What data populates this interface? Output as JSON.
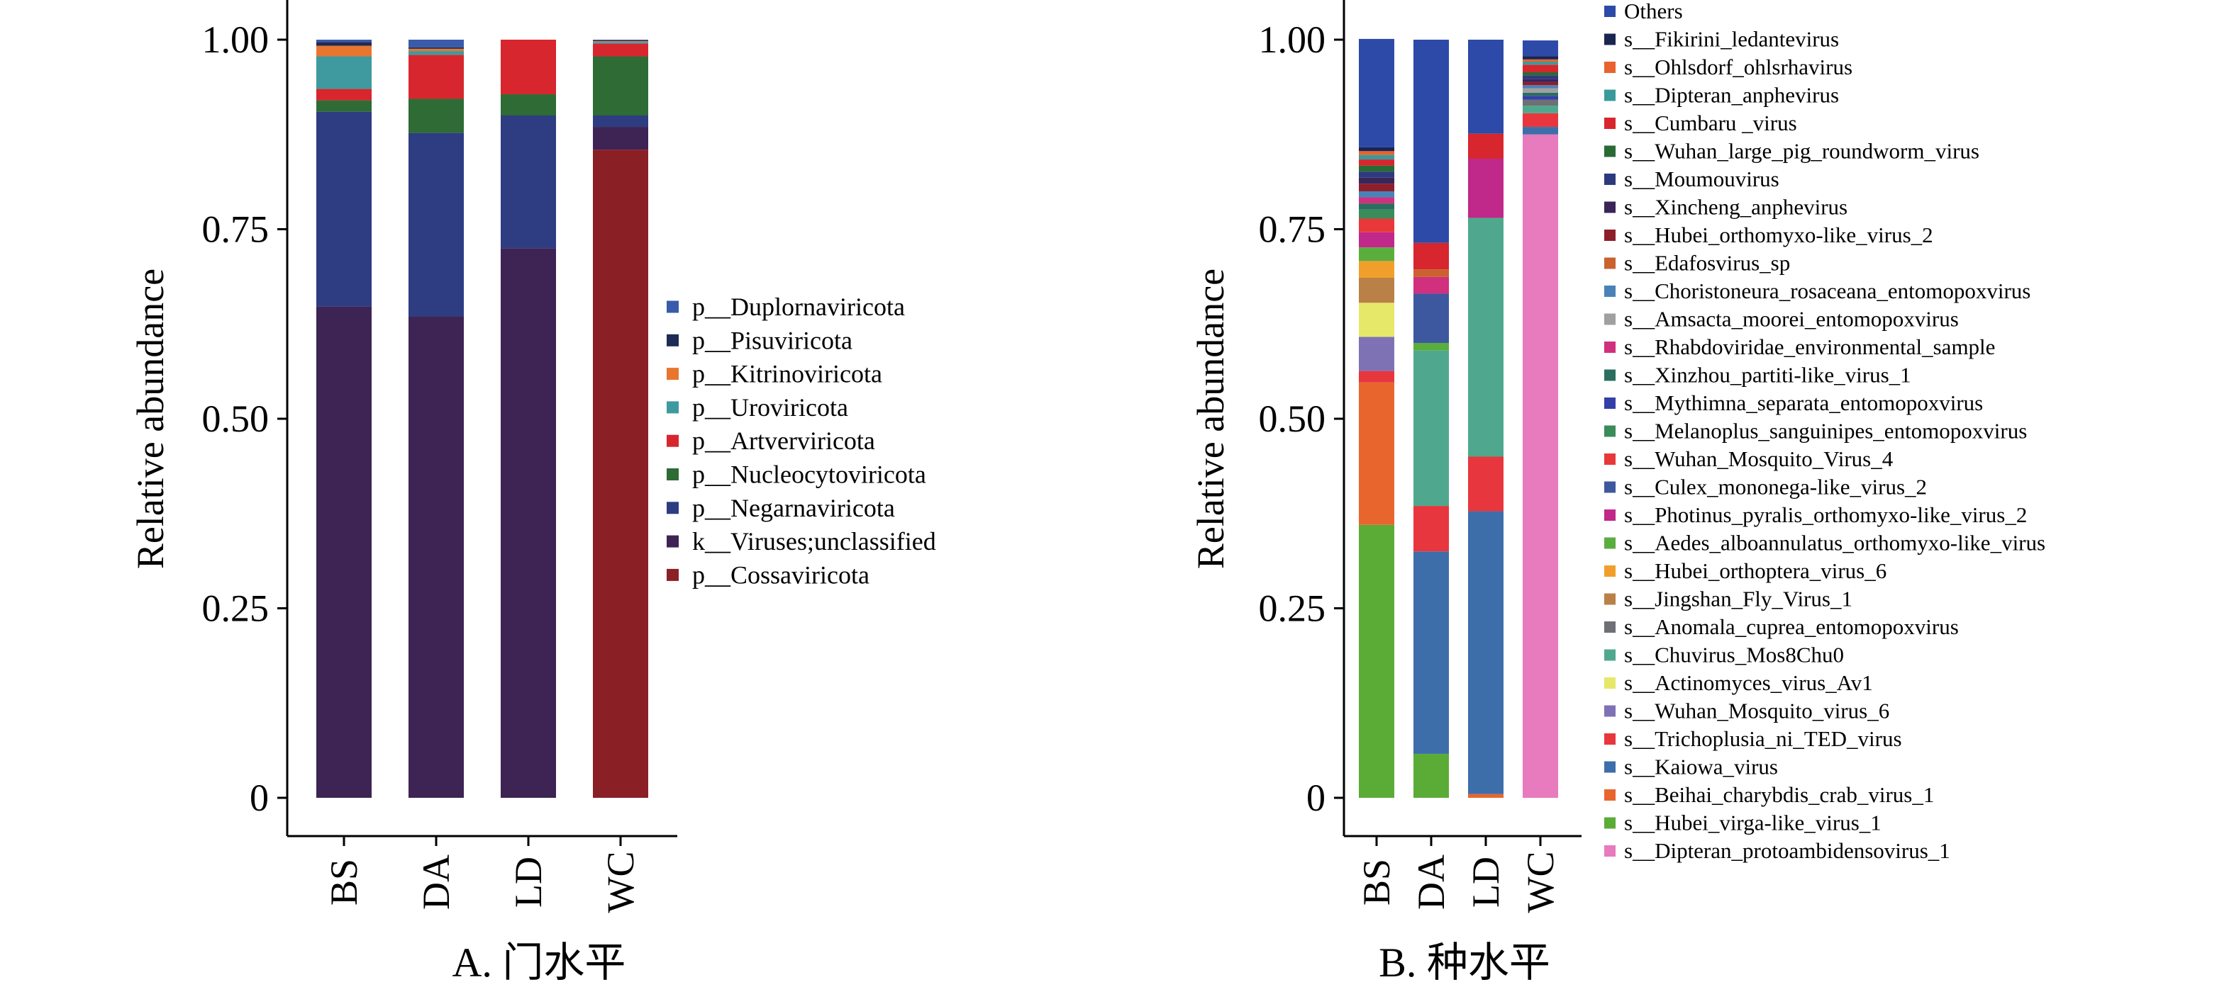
{
  "panels": [
    {
      "id": "A",
      "title": "A. 门水平",
      "ylabel": "Relative abundance",
      "ytick_labels": [
        "1.00",
        "0.75",
        "0.50",
        "0.25",
        "0"
      ],
      "legend": [
        {
          "label": "p__Duplornaviricota",
          "color": "#3A5BAA"
        },
        {
          "label": "p__Pisuviricota",
          "color": "#1E2B55"
        },
        {
          "label": "p__Kitrinoviricota",
          "color": "#E8762E"
        },
        {
          "label": "p__Uroviricota",
          "color": "#3E9A9E"
        },
        {
          "label": "p__Artverviricota",
          "color": "#D7262E"
        },
        {
          "label": "p__Nucleocytoviricota",
          "color": "#2E6B35"
        },
        {
          "label": "p__Negarnaviricota",
          "color": "#2E3C82"
        },
        {
          "label": "k__Viruses;unclassified",
          "color": "#3D2454"
        },
        {
          "label": "p__Cossaviricota",
          "color": "#8B1F26"
        }
      ]
    },
    {
      "id": "B",
      "title": "B. 种水平",
      "ylabel": "Relative abundance",
      "ytick_labels": [
        "1.00",
        "0.75",
        "0.50",
        "0.25",
        "0"
      ],
      "legend": [
        {
          "label": "Others",
          "color": "#2E4AA8"
        },
        {
          "label": "s__Fikirini_ledantevirus",
          "color": "#1A2550"
        },
        {
          "label": "s__Ohlsdorf_ohlsrhavirus",
          "color": "#E8632E"
        },
        {
          "label": "s__Dipteran_anphevirus",
          "color": "#3A9A9A"
        },
        {
          "label": "s__Cumbaru _virus",
          "color": "#D7262E"
        },
        {
          "label": "s__Wuhan_large_pig_roundworm_virus",
          "color": "#2A6B35"
        },
        {
          "label": "s__Moumouvirus",
          "color": "#2E3A7E"
        },
        {
          "label": "s__Xincheng_anphevirus",
          "color": "#3A2558"
        },
        {
          "label": "s__Hubei_orthomyxo-like_virus_2",
          "color": "#8E1F2A"
        },
        {
          "label": "s__Edafosvirus_sp",
          "color": "#C9622E"
        },
        {
          "label": "s__Choristoneura_rosaceana_entomopoxvirus",
          "color": "#4A82B8"
        },
        {
          "label": "s__Amsacta_moorei_entomopoxvirus",
          "color": "#A0A0A0"
        },
        {
          "label": "s__Rhabdoviridae_environmental_sample",
          "color": "#D0307E"
        },
        {
          "label": "s__Xinzhou_partiti-like_virus_1",
          "color": "#2B6E60"
        },
        {
          "label": "s__Mythimna_separata_entomopoxvirus",
          "color": "#3340A8"
        },
        {
          "label": "s__Melanoplus_sanguinipes_entomopoxvirus",
          "color": "#3A8C5A"
        },
        {
          "label": "s__Wuhan_Mosquito_Virus_4",
          "color": "#E8383A"
        },
        {
          "label": "s__Culex_mononega-like_virus_2",
          "color": "#3E58A0"
        },
        {
          "label": "s__Photinus_pyralis_orthomyxo-like_virus_2",
          "color": "#C0288A"
        },
        {
          "label": "s__Aedes_alboannulatus_orthomyxo-like_virus",
          "color": "#5AAE3E"
        },
        {
          "label": "s__Hubei_orthoptera_virus_6",
          "color": "#F0A02A"
        },
        {
          "label": "s__Jingshan_Fly_Virus_1",
          "color": "#B98048"
        },
        {
          "label": "s__Anomala_cuprea_entomopoxvirus",
          "color": "#6E7075"
        },
        {
          "label": "s__Chuvirus_Mos8Chu0",
          "color": "#4FA88E"
        },
        {
          "label": "s__Actinomyces_virus_Av1",
          "color": "#E6E86A"
        },
        {
          "label": "s__Wuhan_Mosquito_virus_6",
          "color": "#7E72B5"
        },
        {
          "label": "s__Trichoplusia_ni_TED_virus",
          "color": "#E8363E"
        },
        {
          "label": "s__Kaiowa_virus",
          "color": "#3D6EAA"
        },
        {
          "label": "s__Beihai_charybdis_crab_virus_1",
          "color": "#E8662E"
        },
        {
          "label": "s__Hubei_virga-like_virus_1",
          "color": "#5AAC36"
        },
        {
          "label": "s__Dipteran_protoambidensovirus_1",
          "color": "#E87ABE"
        }
      ]
    }
  ],
  "chart_data": [
    {
      "type": "bar",
      "stacked": true,
      "title": "A. 门水平",
      "xlabel": "",
      "ylabel": "Relative abundance",
      "ylim": [
        0,
        1
      ],
      "categories": [
        "BS",
        "DA",
        "LD",
        "WC"
      ],
      "series": [
        {
          "name": "p__Cossaviricota",
          "values": [
            0.0,
            0.0,
            0.0,
            0.855
          ]
        },
        {
          "name": "k__Viruses;unclassified",
          "values": [
            0.648,
            0.635,
            0.725,
            0.03
          ]
        },
        {
          "name": "p__Negarnaviricota",
          "values": [
            0.257,
            0.242,
            0.175,
            0.015
          ]
        },
        {
          "name": "p__Nucleocytoviricota",
          "values": [
            0.015,
            0.045,
            0.028,
            0.078
          ]
        },
        {
          "name": "p__Artverviricota",
          "values": [
            0.015,
            0.058,
            0.072,
            0.017
          ]
        },
        {
          "name": "p__Uroviricota",
          "values": [
            0.043,
            0.005,
            0.0,
            0.002
          ]
        },
        {
          "name": "p__Kitrinoviricota",
          "values": [
            0.014,
            0.003,
            0.0,
            0.001
          ]
        },
        {
          "name": "p__Pisuviricota",
          "values": [
            0.005,
            0.002,
            0.0,
            0.001
          ]
        },
        {
          "name": "p__Duplornaviricota",
          "values": [
            0.003,
            0.01,
            0.0,
            0.001
          ]
        }
      ]
    },
    {
      "type": "bar",
      "stacked": true,
      "title": "B. 种水平",
      "xlabel": "",
      "ylabel": "Relative abundance",
      "ylim": [
        0,
        1
      ],
      "categories": [
        "BS",
        "DA",
        "LD",
        "WC"
      ],
      "series": [
        {
          "name": "s__Dipteran_protoambidensovirus_1",
          "values": [
            0.0,
            0.0,
            0.0,
            0.875
          ]
        },
        {
          "name": "s__Hubei_virga-like_virus_1",
          "values": [
            0.36,
            0.058,
            0.0,
            0.0
          ]
        },
        {
          "name": "s__Beihai_charybdis_crab_virus_1",
          "values": [
            0.188,
            0.0,
            0.005,
            0.0
          ]
        },
        {
          "name": "s__Kaiowa_virus",
          "values": [
            0.0,
            0.267,
            0.373,
            0.01
          ]
        },
        {
          "name": "s__Trichoplusia_ni_TED_virus",
          "values": [
            0.015,
            0.06,
            0.072,
            0.018
          ]
        },
        {
          "name": "s__Wuhan_Mosquito_virus_6",
          "values": [
            0.045,
            0.0,
            0.0,
            0.0
          ]
        },
        {
          "name": "s__Actinomyces_virus_Av1",
          "values": [
            0.045,
            0.0,
            0.0,
            0.0
          ]
        },
        {
          "name": "s__Chuvirus_Mos8Chu0",
          "values": [
            0.0,
            0.205,
            0.315,
            0.01
          ]
        },
        {
          "name": "s__Anomala_cuprea_entomopoxvirus",
          "values": [
            0.0,
            0.0,
            0.0,
            0.008
          ]
        },
        {
          "name": "s__Jingshan_Fly_Virus_1",
          "values": [
            0.033,
            0.0,
            0.0,
            0.0
          ]
        },
        {
          "name": "s__Hubei_orthoptera_virus_6",
          "values": [
            0.022,
            0.0,
            0.0,
            0.0
          ]
        },
        {
          "name": "s__Aedes_alboannulatus_orthomyxo-like_virus",
          "values": [
            0.018,
            0.01,
            0.0,
            0.0
          ]
        },
        {
          "name": "s__Photinus_pyralis_orthomyxo-like_virus_2",
          "values": [
            0.02,
            0.0,
            0.078,
            0.0
          ]
        },
        {
          "name": "s__Culex_mononega-like_virus_2",
          "values": [
            0.0,
            0.065,
            0.0,
            0.0
          ]
        },
        {
          "name": "s__Wuhan_Mosquito_Virus_4",
          "values": [
            0.018,
            0.0,
            0.0,
            0.0
          ]
        },
        {
          "name": "s__Melanoplus_sanguinipes_entomopoxvirus",
          "values": [
            0.012,
            0.0,
            0.0,
            0.0
          ]
        },
        {
          "name": "s__Mythimna_separata_entomopoxvirus",
          "values": [
            0.0,
            0.0,
            0.0,
            0.005
          ]
        },
        {
          "name": "s__Xinzhou_partiti-like_virus_1",
          "values": [
            0.008,
            0.0,
            0.0,
            0.004
          ]
        },
        {
          "name": "s__Rhabdoviridae_environmental_sample",
          "values": [
            0.008,
            0.022,
            0.0,
            0.0
          ]
        },
        {
          "name": "s__Amsacta_moorei_entomopoxvirus",
          "values": [
            0.0,
            0.0,
            0.0,
            0.006
          ]
        },
        {
          "name": "s__Choristoneura_rosaceana_entomopoxvirus",
          "values": [
            0.008,
            0.0,
            0.0,
            0.004
          ]
        },
        {
          "name": "s__Edafosvirus_sp",
          "values": [
            0.0,
            0.01,
            0.0,
            0.0
          ]
        },
        {
          "name": "s__Hubei_orthomyxo-like_virus_2",
          "values": [
            0.01,
            0.0,
            0.0,
            0.004
          ]
        },
        {
          "name": "s__Xincheng_anphevirus",
          "values": [
            0.008,
            0.0,
            0.0,
            0.004
          ]
        },
        {
          "name": "s__Moumouvirus",
          "values": [
            0.008,
            0.0,
            0.0,
            0.005
          ]
        },
        {
          "name": "s__Wuhan_large_pig_roundworm_virus",
          "values": [
            0.008,
            0.0,
            0.0,
            0.004
          ]
        },
        {
          "name": "s__Cumbaru _virus",
          "values": [
            0.008,
            0.035,
            0.033,
            0.01
          ]
        },
        {
          "name": "s__Dipteran_anphevirus",
          "values": [
            0.006,
            0.0,
            0.0,
            0.004
          ]
        },
        {
          "name": "s__Ohlsdorf_ohlsrhavirus",
          "values": [
            0.005,
            0.0,
            0.0,
            0.003
          ]
        },
        {
          "name": "s__Fikirini_ledantevirus",
          "values": [
            0.005,
            0.0,
            0.0,
            0.004
          ]
        },
        {
          "name": "Others",
          "values": [
            0.143,
            0.268,
            0.124,
            0.021
          ]
        }
      ]
    }
  ]
}
